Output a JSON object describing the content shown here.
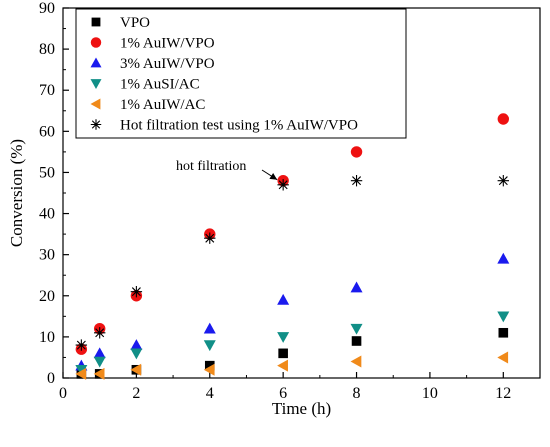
{
  "chart_data": {
    "type": "scatter",
    "title": "",
    "xlabel": "Time (h)",
    "ylabel": "Conversion (%)",
    "xlim": [
      0,
      13
    ],
    "ylim": [
      0,
      90
    ],
    "xticks": [
      0,
      2,
      4,
      6,
      8,
      10,
      12
    ],
    "yticks": [
      0,
      10,
      20,
      30,
      40,
      50,
      60,
      70,
      80,
      90
    ],
    "grid": false,
    "legend_position": "top-left",
    "series": [
      {
        "name": "VPO",
        "marker": "square",
        "color": "#000000",
        "points": [
          [
            0.5,
            1
          ],
          [
            1,
            1
          ],
          [
            2,
            2
          ],
          [
            4,
            3
          ],
          [
            6,
            6
          ],
          [
            8,
            9
          ],
          [
            12,
            11
          ]
        ]
      },
      {
        "name": "1% AuIW/VPO",
        "marker": "circle",
        "color": "#ee1111",
        "points": [
          [
            0.5,
            7
          ],
          [
            1,
            12
          ],
          [
            2,
            20
          ],
          [
            4,
            35
          ],
          [
            6,
            48
          ],
          [
            8,
            55
          ],
          [
            12,
            63
          ]
        ]
      },
      {
        "name": "3% AuIW/VPO",
        "marker": "triangle-up",
        "color": "#1a1aee",
        "points": [
          [
            0.5,
            3
          ],
          [
            1,
            6
          ],
          [
            2,
            8
          ],
          [
            4,
            12
          ],
          [
            6,
            19
          ],
          [
            8,
            22
          ],
          [
            12,
            29
          ]
        ]
      },
      {
        "name": "1% AuSI/AC",
        "marker": "triangle-down",
        "color": "#118f87",
        "points": [
          [
            0.5,
            2
          ],
          [
            1,
            4
          ],
          [
            2,
            6
          ],
          [
            4,
            8
          ],
          [
            6,
            10
          ],
          [
            8,
            12
          ],
          [
            12,
            15
          ]
        ]
      },
      {
        "name": "1% AuIW/AC",
        "marker": "triangle-left",
        "color": "#f08a1a",
        "points": [
          [
            0.5,
            1
          ],
          [
            1,
            1
          ],
          [
            2,
            2
          ],
          [
            4,
            2
          ],
          [
            6,
            3
          ],
          [
            8,
            4
          ],
          [
            12,
            5
          ]
        ]
      },
      {
        "name": "Hot filtration test using 1% AuIW/VPO",
        "marker": "asterisk",
        "color": "#000000",
        "points": [
          [
            0.5,
            8
          ],
          [
            1,
            11
          ],
          [
            2,
            21
          ],
          [
            4,
            34
          ],
          [
            6,
            47
          ],
          [
            8,
            48
          ],
          [
            12,
            48
          ]
        ]
      }
    ],
    "annotations": [
      {
        "text": "hot filtration",
        "arrow_to": [
          6,
          47.5
        ]
      }
    ]
  }
}
